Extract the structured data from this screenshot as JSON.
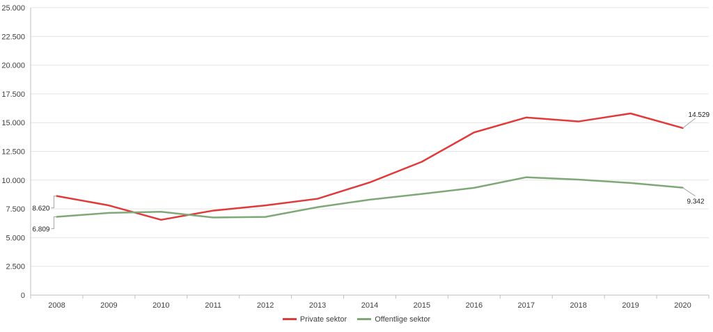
{
  "chart_data": {
    "type": "line",
    "categories": [
      "2008",
      "2009",
      "2010",
      "2011",
      "2012",
      "2013",
      "2014",
      "2015",
      "2016",
      "2017",
      "2018",
      "2019",
      "2020"
    ],
    "ylim": [
      0,
      25000
    ],
    "yticks": [
      0,
      2500,
      5000,
      7500,
      10000,
      12500,
      15000,
      17500,
      20000,
      22500,
      25000
    ],
    "ytick_labels": [
      "0",
      "2.500",
      "5.000",
      "7.500",
      "10.000",
      "12.500",
      "15.000",
      "17.500",
      "20.000",
      "22.500",
      "25.000"
    ],
    "grid": true,
    "legend": "bottom",
    "series": [
      {
        "name": "Private sektor",
        "color": "#e03a3a",
        "values": [
          8620,
          7800,
          6550,
          7350,
          7800,
          8380,
          9800,
          11600,
          14150,
          15450,
          15100,
          15800,
          14529
        ],
        "labels": [
          {
            "index": 0,
            "text": "8.620"
          },
          {
            "index": 12,
            "text": "14.529"
          }
        ]
      },
      {
        "name": "Offentlige sektor",
        "color": "#7fa877",
        "values": [
          6809,
          7150,
          7250,
          6750,
          6800,
          7650,
          8300,
          8800,
          9330,
          10250,
          10050,
          9750,
          9342
        ],
        "labels": [
          {
            "index": 0,
            "text": "6.809"
          },
          {
            "index": 12,
            "text": "9.342"
          }
        ]
      }
    ]
  }
}
